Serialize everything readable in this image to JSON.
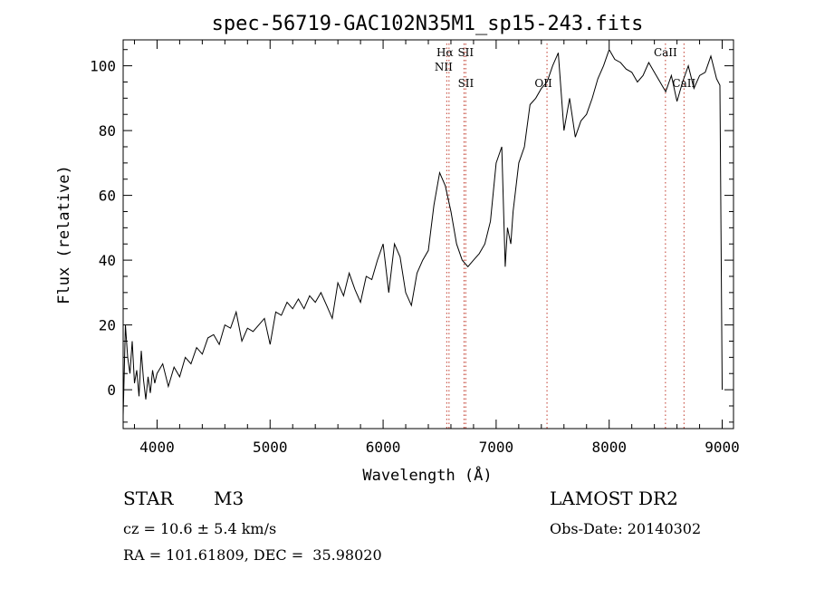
{
  "title": "spec-56719-GAC102N35M1_sp15-243.fits",
  "footer": {
    "class": "STAR",
    "subclass": "M3",
    "survey": "LAMOST DR2",
    "cz_line": "cz = 10.6 ± 5.4 km/s",
    "obs_date": "Obs-Date: 20140302",
    "radec": "RA = 101.61809, DEC =  35.98020"
  },
  "chart_data": {
    "type": "line",
    "title": "spec-56719-GAC102N35M1_sp15-243.fits",
    "xlabel": "Wavelength (Å)",
    "ylabel": "Flux (relative)",
    "xlim": [
      3700,
      9100
    ],
    "ylim": [
      -12,
      108
    ],
    "xticks": [
      4000,
      5000,
      6000,
      7000,
      8000,
      9000
    ],
    "yticks": [
      0,
      20,
      40,
      60,
      80,
      100
    ],
    "grid": false,
    "line_color": "#000000",
    "marker_color": "#c0392b",
    "series": [
      {
        "x": [
          3700,
          3720,
          3740,
          3760,
          3780,
          3800,
          3820,
          3840,
          3860,
          3880,
          3900,
          3920,
          3940,
          3960,
          3980,
          4000,
          4050,
          4100,
          4150,
          4200,
          4250,
          4300,
          4350,
          4400,
          4450,
          4500,
          4550,
          4600,
          4650,
          4700,
          4750,
          4800,
          4850,
          4900,
          4950,
          5000,
          5050,
          5100,
          5150,
          5200,
          5250,
          5300,
          5350,
          5400,
          5450,
          5500,
          5550,
          5600,
          5650,
          5700,
          5750,
          5800,
          5850,
          5900,
          5950,
          6000,
          6050,
          6100,
          6150,
          6200,
          6250,
          6300,
          6350,
          6400,
          6450,
          6500,
          6550,
          6600,
          6650,
          6700,
          6750,
          6800,
          6850,
          6900,
          6950,
          7000,
          7050,
          7080,
          7100,
          7130,
          7150,
          7200,
          7250,
          7300,
          7350,
          7400,
          7450,
          7500,
          7550,
          7600,
          7650,
          7700,
          7750,
          7800,
          7850,
          7900,
          7950,
          8000,
          8050,
          8100,
          8150,
          8200,
          8250,
          8300,
          8350,
          8400,
          8450,
          8500,
          8550,
          8600,
          8650,
          8700,
          8750,
          8800,
          8850,
          8900,
          8950,
          8980,
          9000
        ],
        "y": [
          -8,
          20,
          10,
          5,
          15,
          2,
          6,
          -2,
          12,
          3,
          -3,
          4,
          -1,
          6,
          2,
          5,
          8,
          1,
          7,
          4,
          10,
          8,
          13,
          11,
          16,
          17,
          14,
          20,
          19,
          24,
          15,
          19,
          18,
          20,
          22,
          14,
          24,
          23,
          27,
          25,
          28,
          25,
          29,
          27,
          30,
          26,
          22,
          33,
          29,
          36,
          31,
          27,
          35,
          34,
          40,
          45,
          30,
          45,
          41,
          30,
          26,
          36,
          40,
          43,
          57,
          67,
          63,
          55,
          45,
          40,
          38,
          40,
          42,
          45,
          52,
          70,
          75,
          38,
          50,
          45,
          55,
          70,
          75,
          88,
          90,
          93,
          95,
          100,
          104,
          80,
          90,
          78,
          83,
          85,
          90,
          96,
          100,
          105,
          102,
          101,
          99,
          98,
          95,
          97,
          101,
          98,
          95,
          92,
          97,
          89,
          95,
          100,
          93,
          97,
          98,
          103,
          96,
          94,
          0
        ]
      }
    ],
    "lines": [
      {
        "label": "Hα",
        "wavelength": 6563
      },
      {
        "label": "NII",
        "wavelength": 6583
      },
      {
        "label": "SII",
        "wavelength": 6716
      },
      {
        "label": "SII",
        "wavelength": 6731
      },
      {
        "label": "OII",
        "wavelength": 7450
      },
      {
        "label": "CaII",
        "wavelength": 8498
      },
      {
        "label": "CaII",
        "wavelength": 8662
      }
    ]
  }
}
